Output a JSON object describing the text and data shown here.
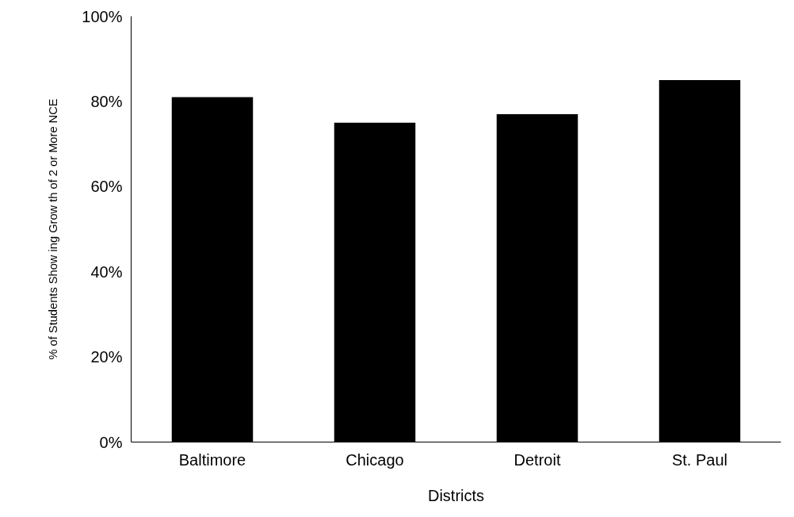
{
  "chart_data": {
    "type": "bar",
    "xlabel": "Districts",
    "ylabel": "% of Students Show ing Grow th of 2 or More NCE",
    "categories": [
      "Baltimore",
      "Chicago",
      "Detroit",
      "St. Paul"
    ],
    "values": [
      81,
      75,
      77,
      85
    ],
    "color": "#000000",
    "ylim": [
      0,
      100
    ],
    "yticks": [
      {
        "value": 0,
        "label": "0%"
      },
      {
        "value": 20,
        "label": "20%"
      },
      {
        "value": 40,
        "label": "40%"
      },
      {
        "value": 60,
        "label": "60%"
      },
      {
        "value": 80,
        "label": "80%"
      },
      {
        "value": 100,
        "label": "100%"
      }
    ],
    "grid": false
  }
}
